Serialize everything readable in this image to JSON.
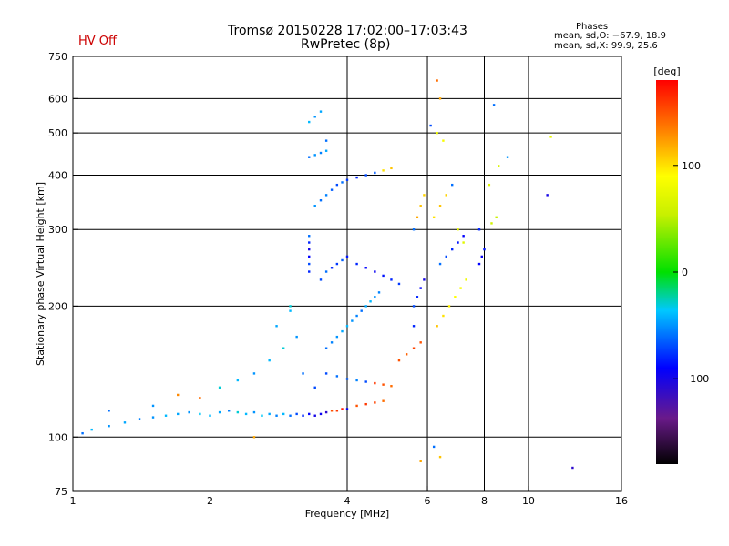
{
  "header": {
    "title": "Tromsø 20150228 17:02:00–17:03:43",
    "subtitle": "RwPretec (8p)",
    "hv_status": "HV Off",
    "hv_color": "#cc0000"
  },
  "phases": {
    "title": "Phases",
    "o_line": "mean, sd,O: −67.9, 18.9",
    "x_line": "mean, sd,X:  99.9, 25.6"
  },
  "colorbar": {
    "label": "[deg]",
    "ticks": [
      {
        "value": 100,
        "label": "100"
      },
      {
        "value": 0,
        "label": "0"
      },
      {
        "value": -100,
        "label": "−100"
      }
    ],
    "range": [
      -180,
      180
    ]
  },
  "chart_data": {
    "type": "scatter",
    "xlabel": "Frequency [MHz]",
    "ylabel": "Stationary phase Virtual Height [km]",
    "x_scale": "log",
    "y_scale": "log",
    "xlim": [
      1,
      16
    ],
    "ylim": [
      75,
      750
    ],
    "grid": true,
    "xticks": [
      {
        "value": 1,
        "label": "1"
      },
      {
        "value": 2,
        "label": "2"
      },
      {
        "value": 4,
        "label": "4"
      },
      {
        "value": 6,
        "label": "6"
      },
      {
        "value": 8,
        "label": "8"
      },
      {
        "value": 10,
        "label": "10"
      },
      {
        "value": 16,
        "label": "16"
      }
    ],
    "yticks": [
      {
        "value": 75,
        "label": "75"
      },
      {
        "value": 100,
        "label": "100"
      },
      {
        "value": 200,
        "label": "200"
      },
      {
        "value": 300,
        "label": "300"
      },
      {
        "value": 400,
        "label": "400"
      },
      {
        "value": 500,
        "label": "500"
      },
      {
        "value": 600,
        "label": "600"
      },
      {
        "value": 750,
        "label": "750"
      }
    ],
    "x_gridlines": [
      2,
      4,
      6,
      8,
      10
    ],
    "y_gridlines": [
      100,
      200,
      300,
      400,
      500,
      600
    ],
    "points": [
      [
        1.05,
        102,
        -60
      ],
      [
        1.1,
        104,
        -40
      ],
      [
        1.2,
        106,
        -50
      ],
      [
        1.3,
        108,
        -45
      ],
      [
        1.4,
        110,
        -55
      ],
      [
        1.5,
        111,
        -50
      ],
      [
        1.6,
        112,
        -40
      ],
      [
        1.7,
        113,
        -45
      ],
      [
        1.8,
        114,
        -50
      ],
      [
        1.9,
        113,
        -35
      ],
      [
        2.0,
        112,
        -40
      ],
      [
        2.1,
        114,
        -45
      ],
      [
        2.2,
        115,
        -55
      ],
      [
        2.3,
        114,
        -30
      ],
      [
        2.4,
        113,
        -40
      ],
      [
        2.5,
        114,
        -50
      ],
      [
        2.6,
        112,
        -35
      ],
      [
        2.7,
        113,
        -45
      ],
      [
        2.8,
        112,
        -55
      ],
      [
        2.9,
        113,
        -40
      ],
      [
        3.0,
        112,
        -60
      ],
      [
        3.1,
        113,
        -70
      ],
      [
        3.2,
        112,
        -80
      ],
      [
        3.3,
        113,
        -90
      ],
      [
        3.4,
        112,
        -100
      ],
      [
        3.5,
        113,
        -95
      ],
      [
        3.6,
        114,
        -110
      ],
      [
        3.7,
        115,
        150
      ],
      [
        3.8,
        115,
        160
      ],
      [
        3.9,
        116,
        170
      ],
      [
        4.0,
        116,
        -90
      ],
      [
        4.2,
        118,
        150
      ],
      [
        4.4,
        119,
        160
      ],
      [
        4.6,
        120,
        155
      ],
      [
        4.8,
        121,
        140
      ],
      [
        1.7,
        125,
        130
      ],
      [
        1.9,
        123,
        140
      ],
      [
        2.1,
        130,
        -30
      ],
      [
        2.3,
        135,
        -40
      ],
      [
        2.5,
        140,
        -50
      ],
      [
        2.7,
        150,
        -40
      ],
      [
        2.9,
        160,
        -30
      ],
      [
        3.1,
        170,
        -50
      ],
      [
        2.8,
        180,
        -45
      ],
      [
        3.0,
        195,
        -40
      ],
      [
        3.2,
        140,
        -60
      ],
      [
        3.4,
        130,
        -70
      ],
      [
        3.3,
        240,
        -80
      ],
      [
        3.3,
        250,
        -70
      ],
      [
        3.3,
        260,
        -90
      ],
      [
        3.3,
        270,
        -100
      ],
      [
        3.3,
        280,
        -80
      ],
      [
        3.3,
        290,
        -60
      ],
      [
        3.5,
        230,
        -70
      ],
      [
        3.6,
        240,
        -60
      ],
      [
        3.7,
        245,
        -80
      ],
      [
        3.8,
        250,
        -75
      ],
      [
        3.9,
        255,
        -65
      ],
      [
        4.0,
        260,
        -85
      ],
      [
        4.2,
        250,
        -80
      ],
      [
        4.4,
        245,
        -90
      ],
      [
        4.6,
        240,
        -95
      ],
      [
        4.8,
        235,
        -85
      ],
      [
        5.0,
        230,
        -80
      ],
      [
        5.2,
        225,
        -75
      ],
      [
        3.4,
        340,
        -50
      ],
      [
        3.5,
        350,
        -60
      ],
      [
        3.6,
        360,
        -55
      ],
      [
        3.7,
        370,
        -65
      ],
      [
        3.8,
        380,
        -70
      ],
      [
        3.9,
        385,
        -60
      ],
      [
        4.0,
        390,
        -75
      ],
      [
        4.2,
        395,
        -80
      ],
      [
        4.4,
        400,
        -70
      ],
      [
        4.6,
        405,
        -65
      ],
      [
        4.8,
        410,
        100
      ],
      [
        5.0,
        415,
        110
      ],
      [
        3.3,
        440,
        -60
      ],
      [
        3.4,
        445,
        -50
      ],
      [
        3.5,
        450,
        -55
      ],
      [
        3.6,
        455,
        -45
      ],
      [
        3.3,
        530,
        -40
      ],
      [
        3.4,
        545,
        -50
      ],
      [
        3.5,
        560,
        -45
      ],
      [
        3.6,
        480,
        -60
      ],
      [
        3.6,
        160,
        -60
      ],
      [
        3.7,
        165,
        -55
      ],
      [
        3.8,
        170,
        -50
      ],
      [
        3.9,
        175,
        -45
      ],
      [
        4.0,
        180,
        -40
      ],
      [
        4.1,
        185,
        -50
      ],
      [
        4.2,
        190,
        -55
      ],
      [
        4.3,
        195,
        -60
      ],
      [
        4.4,
        200,
        -45
      ],
      [
        4.5,
        205,
        -40
      ],
      [
        4.6,
        210,
        -50
      ],
      [
        4.7,
        215,
        -55
      ],
      [
        3.6,
        140,
        -70
      ],
      [
        3.8,
        138,
        -60
      ],
      [
        4.0,
        136,
        -65
      ],
      [
        4.2,
        135,
        -55
      ],
      [
        4.4,
        134,
        -70
      ],
      [
        4.6,
        133,
        160
      ],
      [
        4.8,
        132,
        150
      ],
      [
        5.0,
        131,
        140
      ],
      [
        5.2,
        150,
        150
      ],
      [
        5.4,
        155,
        145
      ],
      [
        5.6,
        160,
        155
      ],
      [
        5.8,
        165,
        150
      ],
      [
        5.6,
        200,
        -70
      ],
      [
        5.7,
        210,
        -80
      ],
      [
        5.8,
        220,
        -90
      ],
      [
        5.9,
        230,
        -100
      ],
      [
        5.6,
        300,
        -60
      ],
      [
        5.7,
        320,
        120
      ],
      [
        5.8,
        340,
        110
      ],
      [
        5.9,
        360,
        105
      ],
      [
        5.6,
        180,
        -80
      ],
      [
        6.3,
        180,
        110
      ],
      [
        6.5,
        190,
        100
      ],
      [
        6.7,
        200,
        95
      ],
      [
        6.9,
        210,
        90
      ],
      [
        7.1,
        220,
        85
      ],
      [
        7.3,
        230,
        80
      ],
      [
        6.4,
        250,
        -60
      ],
      [
        6.6,
        260,
        -70
      ],
      [
        6.8,
        270,
        -80
      ],
      [
        7.0,
        280,
        -85
      ],
      [
        7.2,
        290,
        -90
      ],
      [
        6.2,
        320,
        100
      ],
      [
        6.4,
        340,
        110
      ],
      [
        6.6,
        360,
        105
      ],
      [
        6.8,
        380,
        -60
      ],
      [
        7.0,
        300,
        75
      ],
      [
        7.2,
        280,
        70
      ],
      [
        6.3,
        500,
        80
      ],
      [
        6.5,
        480,
        85
      ],
      [
        6.4,
        600,
        120
      ],
      [
        6.1,
        520,
        -70
      ],
      [
        6.3,
        660,
        140
      ],
      [
        7.8,
        250,
        -90
      ],
      [
        7.9,
        260,
        -95
      ],
      [
        8.0,
        270,
        -85
      ],
      [
        7.8,
        300,
        -80
      ],
      [
        8.3,
        310,
        60
      ],
      [
        8.5,
        320,
        55
      ],
      [
        8.2,
        380,
        70
      ],
      [
        8.6,
        420,
        65
      ],
      [
        9.0,
        440,
        -50
      ],
      [
        8.4,
        580,
        -60
      ],
      [
        11,
        360,
        -100
      ],
      [
        11.2,
        490,
        75
      ],
      [
        12.5,
        85,
        -110
      ],
      [
        6.2,
        95,
        -60
      ],
      [
        6.4,
        90,
        110
      ],
      [
        5.8,
        88,
        120
      ],
      [
        3.0,
        200,
        -30
      ],
      [
        2.5,
        100,
        120
      ],
      [
        1.2,
        115,
        -60
      ],
      [
        1.5,
        118,
        -50
      ]
    ]
  }
}
